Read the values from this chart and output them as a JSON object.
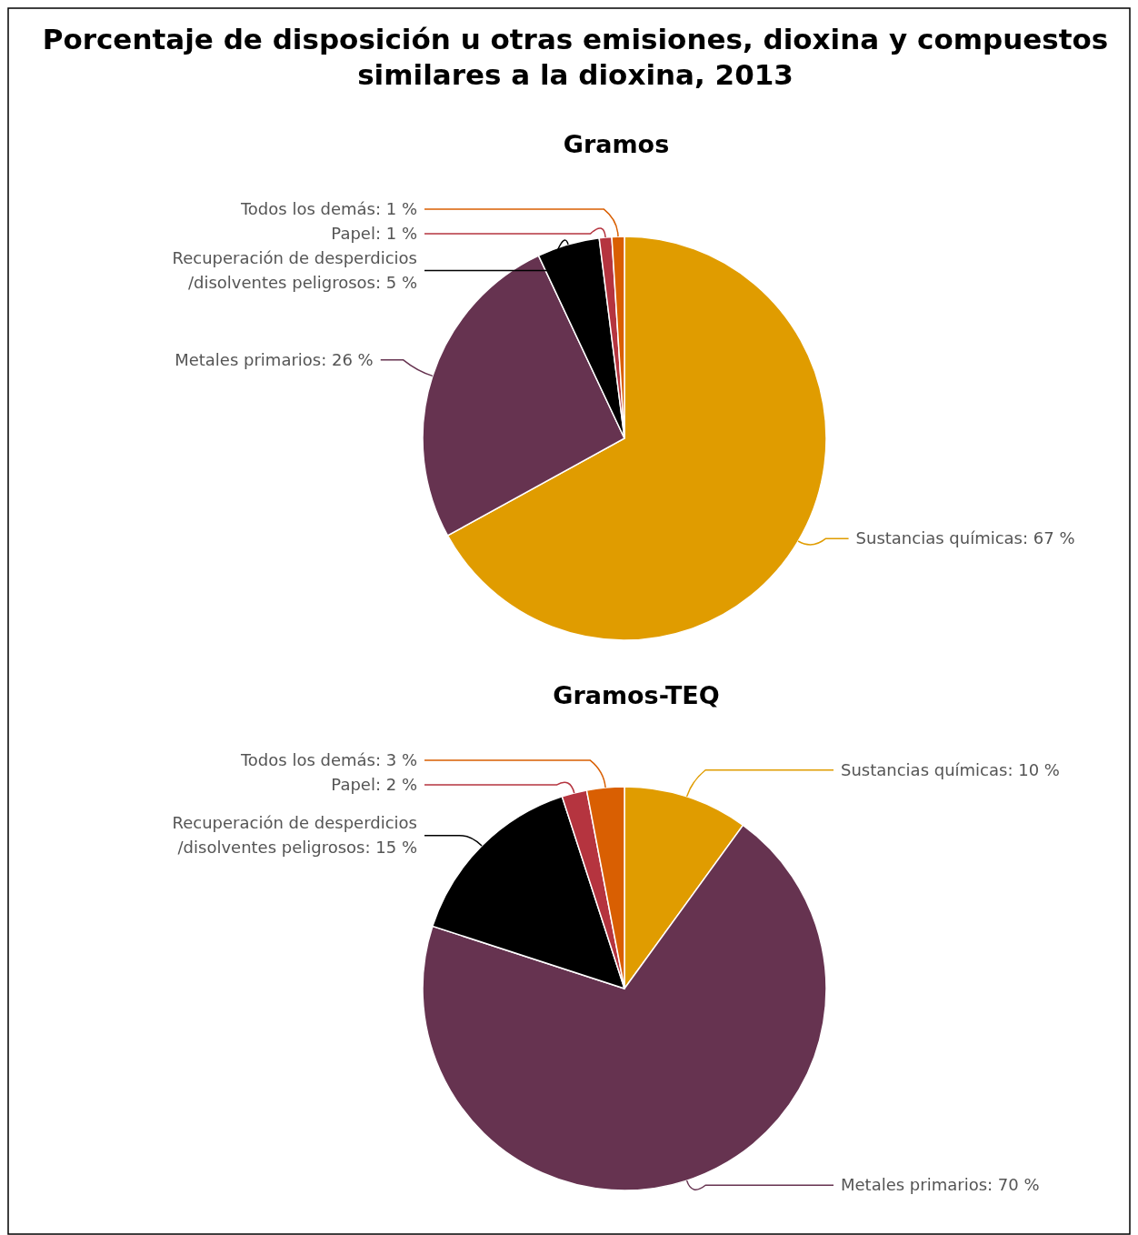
{
  "chart_data": [
    {
      "type": "pie",
      "title": "Porcentaje de disposición u otras emisiones, dioxina y compuestos similares a la dioxina, 2013",
      "subtitle": "Gramos",
      "categories": [
        "Sustancias químicas",
        "Metales primarios",
        "Recuperación de desperdicios /disolventes peligrosos",
        "Papel",
        "Todos los demás"
      ],
      "values": [
        67,
        26,
        5,
        1,
        1
      ],
      "value_labels": [
        "67 %",
        "26 %",
        "5 %",
        "1 %",
        "1 %"
      ],
      "colors": [
        "#e09c00",
        "#663350",
        "#000000",
        "#b5343f",
        "#d95f02"
      ]
    },
    {
      "type": "pie",
      "title": "Gramos-TEQ",
      "categories": [
        "Sustancias químicas",
        "Metales primarios",
        "Recuperación de desperdicios /disolventes peligrosos",
        "Papel",
        "Todos los demás"
      ],
      "values": [
        10,
        70,
        15,
        2,
        3
      ],
      "value_labels": [
        "10 %",
        "70 %",
        "15 %",
        "2 %",
        "3 %"
      ],
      "colors": [
        "#e09c00",
        "#663350",
        "#000000",
        "#b5343f",
        "#d95f02"
      ]
    }
  ]
}
